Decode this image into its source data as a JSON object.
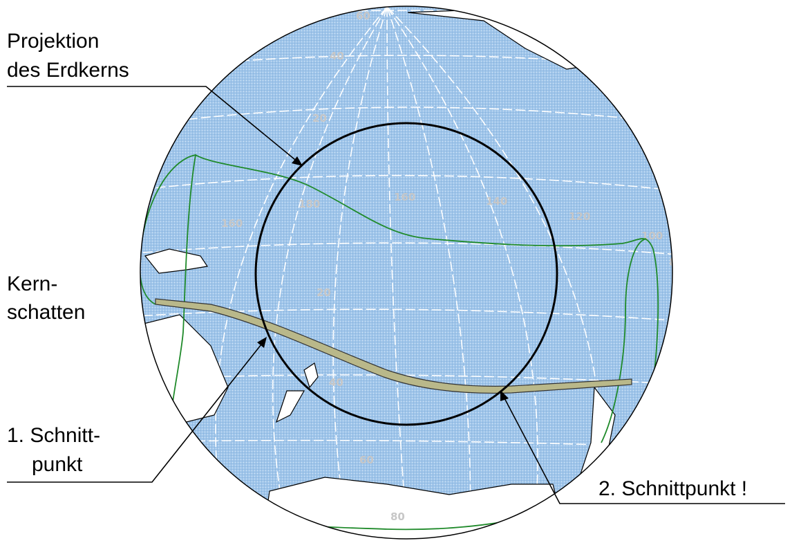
{
  "labels": {
    "projection_line1": "Projektion",
    "projection_line2": "des Erdkerns",
    "umbra_line1": "Kern-",
    "umbra_line2": "schatten",
    "first_intersection_line1": "1. Schnitt-",
    "first_intersection_line2": "punkt",
    "second_intersection": "2. Schnittpunkt !"
  },
  "map_grid_labels": [
    "60",
    "40",
    "20",
    "20",
    "40",
    "60",
    "80",
    "160",
    "180",
    "160",
    "140",
    "120",
    "100",
    "80"
  ],
  "colors": {
    "ocean": "#9fc5ea",
    "grid": "#ffffff",
    "land": "#ffffff",
    "eclipse_limit": "#1f8a2a",
    "umbra_path": "#b9b88a",
    "outline": "#000000"
  }
}
